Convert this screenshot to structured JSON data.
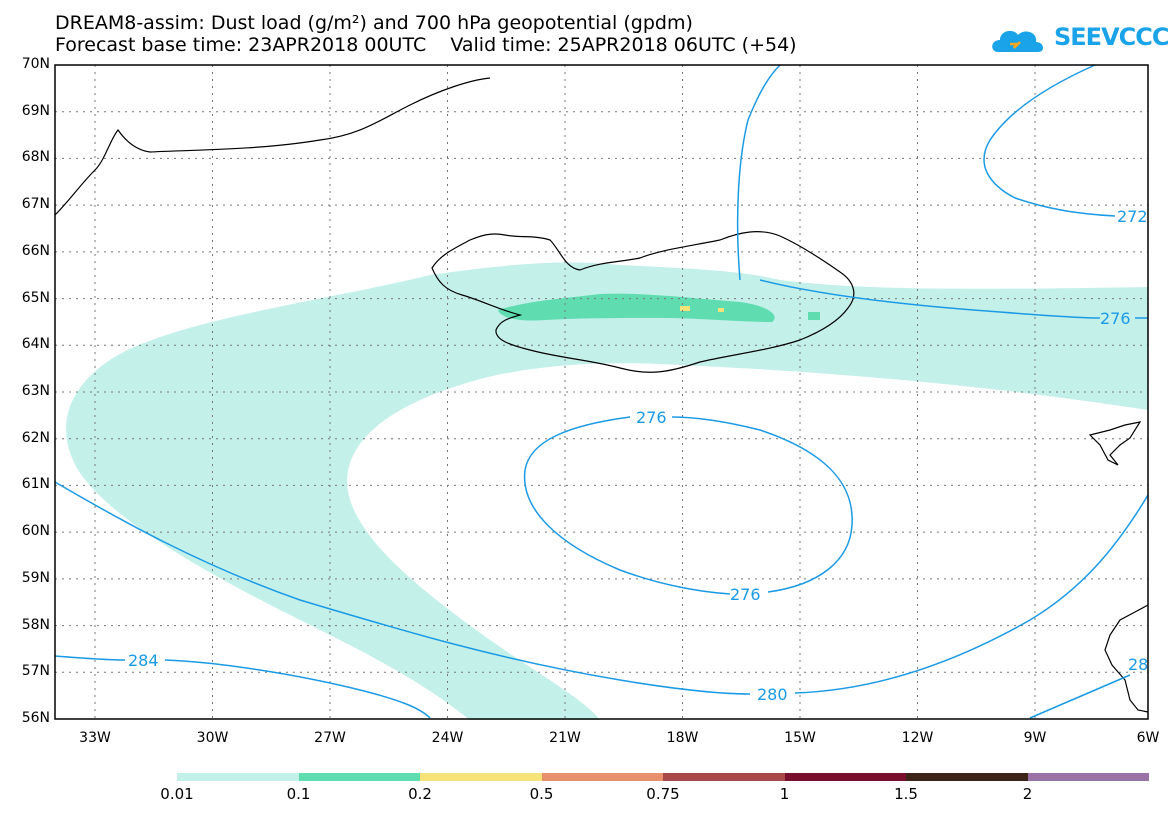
{
  "header": {
    "title_line1": "DREAM8-assim: Dust load (g/m²) and 700 hPa geopotential (gpdm)",
    "title_line2": "Forecast base time: 23APR2018 00UTC    Valid time: 25APR2018 06UTC (+54)"
  },
  "logo": {
    "text": "SEEVCCC",
    "icon": "cloud-logo-icon"
  },
  "axes": {
    "lat_labels": [
      "70N",
      "69N",
      "68N",
      "67N",
      "66N",
      "65N",
      "64N",
      "63N",
      "62N",
      "61N",
      "60N",
      "59N",
      "58N",
      "57N",
      "56N"
    ],
    "lon_labels": [
      "33W",
      "30W",
      "27W",
      "24W",
      "21W",
      "18W",
      "15W",
      "12W",
      "9W",
      "6W"
    ]
  },
  "contours": {
    "labels": [
      {
        "text": "272"
      },
      {
        "text": "276"
      },
      {
        "text": "276"
      },
      {
        "text": "276"
      },
      {
        "text": "280"
      },
      {
        "text": "284"
      },
      {
        "text": "28"
      }
    ]
  },
  "colorbar": {
    "labels": [
      "0.01",
      "0.1",
      "0.2",
      "0.5",
      "0.75",
      "1",
      "1.5",
      "2"
    ],
    "colors": [
      "#c4f0ea",
      "#5fdcb0",
      "#f5e37a",
      "#e8906a",
      "#a84848",
      "#7a0e2e",
      "#3c2418",
      "#9b72a6"
    ]
  },
  "colors": {
    "contour": "#1a9ae6",
    "dust_low": "#c4f0ea",
    "dust_mid": "#5fdcb0",
    "dust_high": "#f5e37a"
  }
}
